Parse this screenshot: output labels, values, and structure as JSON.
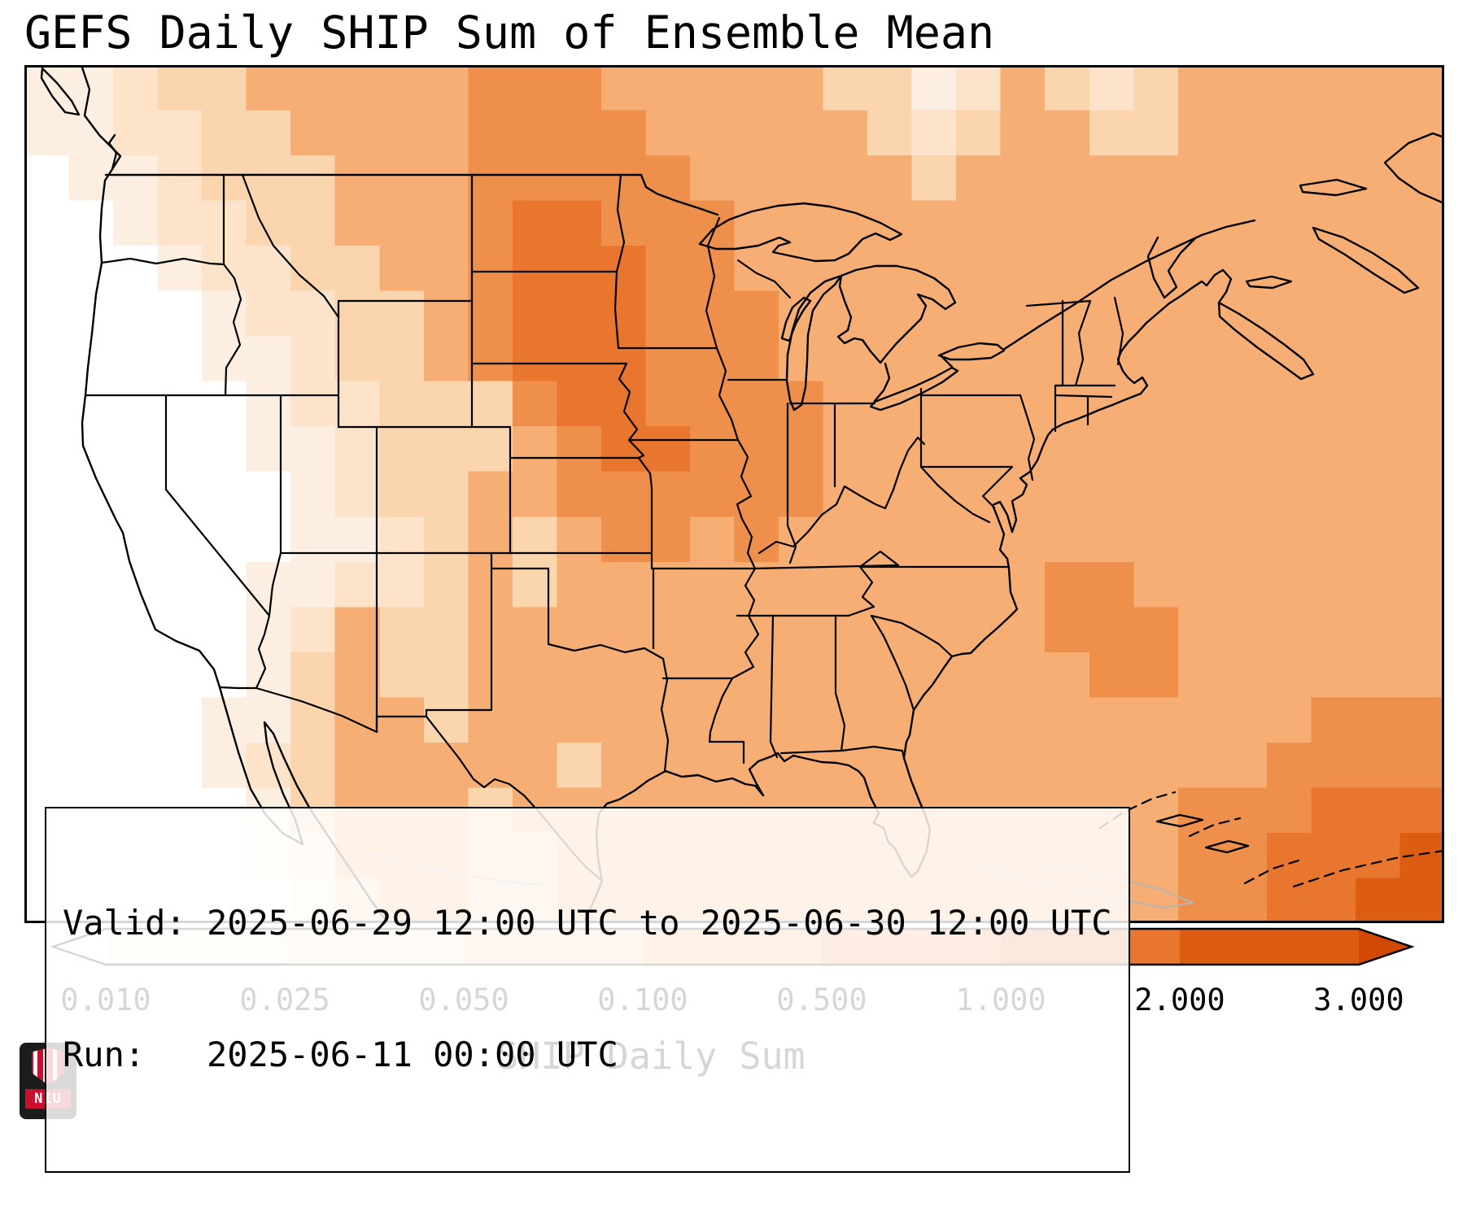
{
  "title": "GEFS Daily SHIP Sum of Ensemble Mean",
  "annotation": {
    "line1": "Valid: 2025-06-29 12:00 UTC to 2025-06-30 12:00 UTC",
    "line2": "Run:   2025-06-11 00:00 UTC"
  },
  "colorbar": {
    "label": "SHIP Daily Sum",
    "ticks": [
      "0.010",
      "0.025",
      "0.050",
      "0.100",
      "0.500",
      "1.000",
      "2.000",
      "3.000"
    ]
  },
  "logo": {
    "text": "NIU",
    "brand_red": "#c8102e",
    "background": "#1c1c1c"
  },
  "chart_data": {
    "type": "heatmap",
    "title": "GEFS Daily SHIP Sum of Ensemble Mean",
    "colorbar_label": "SHIP Daily Sum",
    "valid_period": "2025-06-29 12:00 UTC to 2025-06-30 12:00 UTC",
    "run_time": "2025-06-11 00:00 UTC",
    "levels": [
      0.01,
      0.025,
      0.05,
      0.1,
      0.5,
      1.0,
      2.0,
      3.0
    ],
    "level_colors": [
      "#ffffff",
      "#fcefe1",
      "#fce3c9",
      "#fbd5ad",
      "#f6ae74",
      "#ef8f4c",
      "#e8762e",
      "#dc5c12",
      "#d14904"
    ],
    "grid": {
      "cols": 32,
      "rows": 19,
      "values": [
        [
          0.02,
          0.02,
          0.04,
          0.08,
          0.08,
          0.3,
          0.3,
          0.3,
          0.3,
          0.3,
          0.7,
          0.7,
          0.7,
          0.3,
          0.3,
          0.3,
          0.3,
          0.3,
          0.08,
          0.08,
          0.02,
          0.04,
          0.3,
          0.08,
          0.04,
          0.08,
          0.3,
          0.3,
          0.3,
          0.3,
          0.3,
          0.3
        ],
        [
          0.02,
          0.02,
          0.04,
          0.04,
          0.08,
          0.08,
          0.3,
          0.3,
          0.3,
          0.3,
          0.7,
          0.7,
          0.7,
          0.7,
          0.3,
          0.3,
          0.3,
          0.3,
          0.3,
          0.08,
          0.04,
          0.08,
          0.3,
          0.3,
          0.08,
          0.08,
          0.3,
          0.3,
          0.3,
          0.3,
          0.3,
          0.3
        ],
        [
          0,
          0.02,
          0.02,
          0.04,
          0.08,
          0.08,
          0.08,
          0.3,
          0.3,
          0.3,
          0.7,
          0.7,
          0.7,
          0.7,
          0.7,
          0.3,
          0.3,
          0.3,
          0.3,
          0.3,
          0.08,
          0.3,
          0.3,
          0.3,
          0.3,
          0.3,
          0.3,
          0.3,
          0.3,
          0.3,
          0.3,
          0.3
        ],
        [
          0,
          0,
          0.02,
          0.04,
          0.04,
          0.08,
          0.08,
          0.3,
          0.3,
          0.3,
          0.7,
          1.5,
          1.5,
          0.7,
          0.7,
          0.7,
          0.3,
          0.3,
          0.3,
          0.3,
          0.3,
          0.3,
          0.3,
          0.3,
          0.3,
          0.3,
          0.3,
          0.3,
          0.3,
          0.3,
          0.3,
          0.3
        ],
        [
          0,
          0,
          0,
          0.02,
          0.04,
          0.04,
          0.08,
          0.08,
          0.3,
          0.3,
          0.7,
          1.5,
          1.5,
          1.5,
          0.7,
          0.7,
          0.3,
          0.3,
          0.3,
          0.3,
          0.3,
          0.3,
          0.3,
          0.3,
          0.3,
          0.3,
          0.3,
          0.3,
          0.3,
          0.3,
          0.3,
          0.3
        ],
        [
          0,
          0,
          0,
          0,
          0.02,
          0.04,
          0.04,
          0.08,
          0.08,
          0.3,
          0.7,
          1.5,
          1.5,
          1.5,
          0.7,
          0.7,
          0.7,
          0.3,
          0.3,
          0.3,
          0.3,
          0.3,
          0.3,
          0.3,
          0.3,
          0.3,
          0.3,
          0.3,
          0.3,
          0.3,
          0.3,
          0.3
        ],
        [
          0,
          0,
          0,
          0,
          0.02,
          0.02,
          0.04,
          0.08,
          0.08,
          0.3,
          0.7,
          1.5,
          1.5,
          1.5,
          0.7,
          0.7,
          0.7,
          0.3,
          0.3,
          0.3,
          0.3,
          0.3,
          0.3,
          0.3,
          0.3,
          0.3,
          0.3,
          0.3,
          0.3,
          0.3,
          0.3,
          0.3
        ],
        [
          0,
          0,
          0,
          0,
          0,
          0.02,
          0.04,
          0.04,
          0.08,
          0.08,
          0.08,
          0.7,
          1.5,
          1.5,
          0.7,
          0.7,
          0.7,
          0.7,
          0.3,
          0.3,
          0.3,
          0.3,
          0.3,
          0.3,
          0.3,
          0.3,
          0.3,
          0.3,
          0.3,
          0.3,
          0.3,
          0.3
        ],
        [
          0,
          0,
          0,
          0,
          0,
          0.02,
          0.02,
          0.04,
          0.08,
          0.08,
          0.08,
          0.3,
          0.7,
          1.5,
          1.5,
          0.7,
          0.7,
          0.7,
          0.3,
          0.3,
          0.3,
          0.3,
          0.3,
          0.3,
          0.3,
          0.3,
          0.3,
          0.3,
          0.3,
          0.3,
          0.3,
          0.3
        ],
        [
          0,
          0,
          0,
          0,
          0,
          0,
          0.02,
          0.04,
          0.08,
          0.08,
          0.3,
          0.3,
          0.7,
          0.7,
          0.7,
          0.7,
          0.7,
          0.7,
          0.3,
          0.3,
          0.3,
          0.3,
          0.3,
          0.3,
          0.3,
          0.3,
          0.3,
          0.3,
          0.3,
          0.3,
          0.3,
          0.3
        ],
        [
          0,
          0,
          0,
          0,
          0,
          0,
          0.02,
          0.02,
          0.04,
          0.08,
          0.3,
          0.08,
          0.3,
          0.7,
          0.7,
          0.3,
          0.7,
          0.3,
          0.3,
          0.3,
          0.3,
          0.3,
          0.3,
          0.3,
          0.3,
          0.3,
          0.3,
          0.3,
          0.3,
          0.3,
          0.3,
          0.3
        ],
        [
          0,
          0,
          0,
          0,
          0,
          0.02,
          0.02,
          0.04,
          0.04,
          0.08,
          0.3,
          0.08,
          0.3,
          0.3,
          0.3,
          0.3,
          0.3,
          0.3,
          0.3,
          0.3,
          0.3,
          0.3,
          0.3,
          0.7,
          0.7,
          0.3,
          0.3,
          0.3,
          0.3,
          0.3,
          0.3,
          0.3
        ],
        [
          0,
          0,
          0,
          0,
          0,
          0.02,
          0.04,
          0.3,
          0.08,
          0.08,
          0.3,
          0.3,
          0.3,
          0.3,
          0.3,
          0.3,
          0.3,
          0.3,
          0.3,
          0.3,
          0.3,
          0.3,
          0.3,
          0.7,
          0.7,
          0.7,
          0.3,
          0.3,
          0.3,
          0.3,
          0.3,
          0.3
        ],
        [
          0,
          0,
          0,
          0,
          0,
          0.02,
          0.08,
          0.3,
          0.08,
          0.08,
          0.3,
          0.3,
          0.3,
          0.3,
          0.3,
          0.3,
          0.3,
          0.3,
          0.3,
          0.3,
          0.3,
          0.3,
          0.3,
          0.3,
          0.7,
          0.7,
          0.3,
          0.3,
          0.3,
          0.3,
          0.3,
          0.3
        ],
        [
          0,
          0,
          0,
          0,
          0.02,
          0.02,
          0.08,
          0.3,
          0.3,
          0.08,
          0.3,
          0.3,
          0.3,
          0.3,
          0.3,
          0.3,
          0.3,
          0.3,
          0.3,
          0.3,
          0.3,
          0.3,
          0.3,
          0.3,
          0.3,
          0.3,
          0.3,
          0.3,
          0.3,
          0.7,
          0.7,
          0.7
        ],
        [
          0,
          0,
          0,
          0,
          0.02,
          0.04,
          0.08,
          0.3,
          0.3,
          0.3,
          0.3,
          0.3,
          0.08,
          0.3,
          0.3,
          0.3,
          0.3,
          0.3,
          0.3,
          0.3,
          0.3,
          0.3,
          0.3,
          0.3,
          0.3,
          0.3,
          0.3,
          0.3,
          0.7,
          0.7,
          0.7,
          0.7
        ],
        [
          0,
          0,
          0,
          0,
          0,
          0.02,
          0.08,
          0.3,
          0.3,
          0.3,
          0.08,
          0.3,
          0.3,
          0.3,
          0.3,
          0.3,
          0.3,
          0.3,
          0.3,
          0.3,
          0.3,
          0.3,
          0.3,
          0.3,
          0.3,
          0.3,
          0.7,
          0.7,
          0.7,
          1.5,
          1.5,
          1.5
        ],
        [
          0,
          0,
          0,
          0,
          0,
          0.02,
          0.04,
          0.3,
          0.3,
          0.3,
          0.08,
          0.08,
          0.3,
          0.3,
          0.3,
          0.3,
          0.3,
          0.3,
          0.3,
          0.3,
          0.3,
          0.3,
          0.3,
          0.3,
          0.3,
          0.3,
          0.7,
          0.7,
          1.5,
          1.5,
          1.5,
          2.5
        ],
        [
          0,
          0,
          0,
          0,
          0,
          0,
          0.02,
          0.08,
          0.3,
          0.3,
          0.08,
          0.08,
          0.3,
          0.3,
          0.3,
          0.3,
          0.3,
          0.3,
          0.3,
          0.3,
          0.3,
          0.3,
          0.3,
          0.3,
          0.3,
          0.3,
          0.7,
          0.7,
          1.5,
          1.5,
          2.5,
          2.5
        ]
      ]
    }
  }
}
